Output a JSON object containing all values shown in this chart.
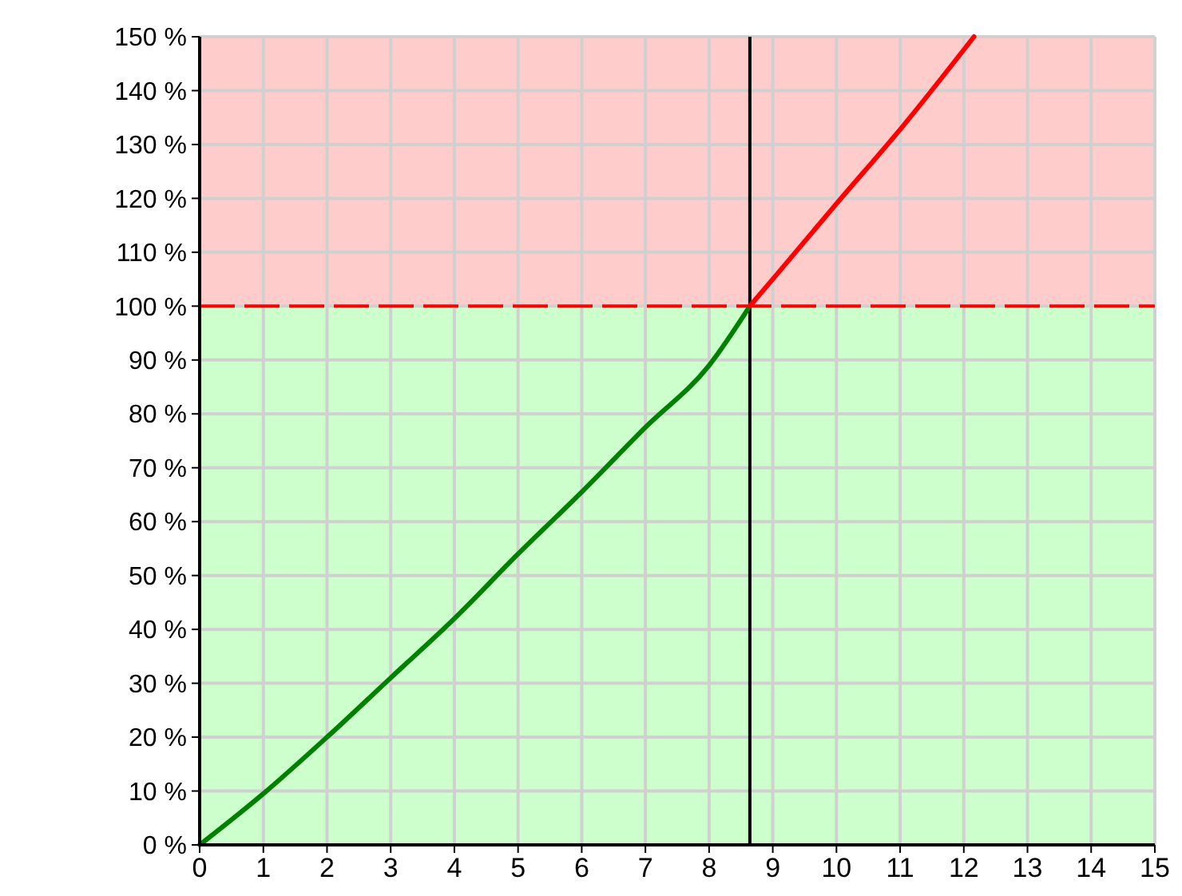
{
  "chart_data": {
    "type": "line",
    "xlim": [
      0,
      15
    ],
    "xticks": [
      0,
      1,
      2,
      3,
      4,
      5,
      6,
      7,
      8,
      9,
      10,
      11,
      12,
      13,
      14,
      15
    ],
    "ylim": [
      0,
      150
    ],
    "yticks": [
      {
        "value": 0,
        "label": "0 %"
      },
      {
        "value": 10,
        "label": "10 %"
      },
      {
        "value": 20,
        "label": "20 %"
      },
      {
        "value": 30,
        "label": "30 %"
      },
      {
        "value": 40,
        "label": "40 %"
      },
      {
        "value": 50,
        "label": "50 %"
      },
      {
        "value": 60,
        "label": "60 %"
      },
      {
        "value": 70,
        "label": "70 %"
      },
      {
        "value": 80,
        "label": "80 %"
      },
      {
        "value": 90,
        "label": "90 %"
      },
      {
        "value": 100,
        "label": "100 %"
      },
      {
        "value": 110,
        "label": "110 %"
      },
      {
        "value": 120,
        "label": "120 %"
      },
      {
        "value": 130,
        "label": "130 %"
      },
      {
        "value": 140,
        "label": "140 %"
      },
      {
        "value": 150,
        "label": "150 %"
      }
    ],
    "grid": true,
    "line_style": "solid",
    "marker": "none",
    "series": [
      {
        "color": "#008000",
        "x": [
          0,
          1,
          2,
          3,
          4,
          5,
          6,
          7,
          8,
          8.64
        ],
        "values": [
          0,
          9.5,
          20,
          31,
          42,
          54,
          65.5,
          77.5,
          89,
          100
        ]
      },
      {
        "color": "#ff0000",
        "x": [
          8.64,
          9,
          10,
          11.05,
          12.16
        ],
        "values": [
          100,
          105,
          119,
          133.5,
          150
        ]
      }
    ],
    "bands": [
      {
        "axis": "y",
        "from": 0,
        "to": 100,
        "color": "#ccffcc"
      },
      {
        "axis": "y",
        "from": 100,
        "to": 150,
        "color": "#ffcccc"
      }
    ],
    "ref_lines": [
      {
        "axis": "y",
        "value": 100,
        "color": "#ff0000",
        "line_style": "dashed"
      },
      {
        "axis": "x",
        "value": 8.64,
        "color": "#000000",
        "line_style": "solid"
      }
    ]
  }
}
